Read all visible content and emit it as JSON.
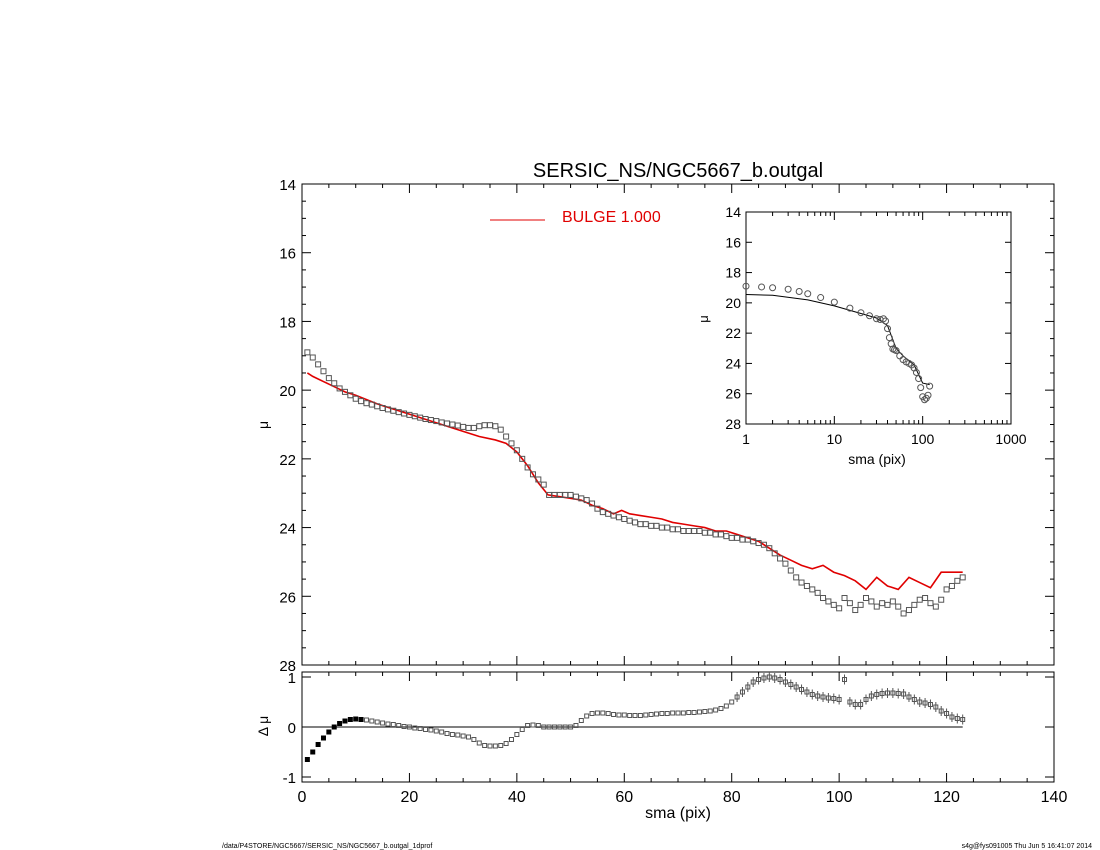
{
  "title": "SERSIC_NS/NGC5667_b.outgal",
  "footer": {
    "left": "/data/P4STORE/NGC5667/SERSIC_NS/NGC5667_b.outgal_1dprof",
    "right": "s4g@fys091005  Thu Jun  5 16:41:07 2014"
  },
  "colors": {
    "model": "#e00000",
    "points": "#555555",
    "axes": "#000000"
  },
  "chart_data": [
    {
      "id": "main",
      "type": "scatter",
      "ylabel": "μ",
      "xlim": [
        0,
        140
      ],
      "ylim": [
        28,
        14
      ],
      "yticks": [
        14,
        16,
        18,
        20,
        22,
        24,
        26,
        28
      ],
      "legend": {
        "position": "top-center",
        "label": "BULGE  1.000"
      },
      "series": [
        {
          "name": "BULGE  1.000",
          "kind": "line",
          "x": [
            1,
            2,
            4,
            6,
            8,
            10,
            14,
            18,
            22,
            26,
            30,
            33,
            36,
            38,
            40,
            42,
            44,
            45.3,
            45.8,
            48,
            50,
            52,
            54,
            56,
            58,
            59.5,
            61,
            63,
            65,
            67,
            69,
            71,
            73,
            75,
            77,
            79,
            81,
            83,
            85,
            87,
            89,
            91,
            93,
            95,
            97,
            99,
            101,
            103,
            105,
            107,
            109,
            111,
            113,
            115,
            117,
            119,
            121,
            123
          ],
          "y": [
            19.5,
            19.6,
            19.75,
            19.9,
            20.05,
            20.15,
            20.4,
            20.6,
            20.8,
            21.0,
            21.2,
            21.35,
            21.45,
            21.55,
            21.8,
            22.2,
            22.7,
            22.95,
            23.05,
            23.1,
            23.15,
            23.2,
            23.35,
            23.45,
            23.6,
            23.5,
            23.6,
            23.65,
            23.7,
            23.75,
            23.85,
            23.9,
            23.95,
            24.0,
            24.1,
            24.1,
            24.2,
            24.3,
            24.4,
            24.6,
            24.8,
            24.95,
            25.1,
            25.2,
            25.1,
            25.3,
            25.4,
            25.55,
            25.8,
            25.45,
            25.7,
            25.8,
            25.45,
            25.6,
            25.75,
            25.3,
            25.3,
            25.3
          ]
        },
        {
          "name": "",
          "kind": "points",
          "x": [
            1,
            2,
            3,
            4,
            5,
            6,
            7,
            8,
            9,
            10,
            11,
            12,
            13,
            14,
            15,
            16,
            17,
            18,
            19,
            20,
            21,
            22,
            23,
            24,
            25,
            26,
            27,
            28,
            29,
            30,
            31,
            32,
            33,
            34,
            35,
            36,
            37,
            38,
            39,
            40,
            41,
            42,
            43,
            44,
            45,
            46,
            47,
            48,
            49,
            50,
            51,
            52,
            53,
            54,
            55,
            56,
            57,
            58,
            59,
            60,
            61,
            62,
            63,
            64,
            65,
            66,
            67,
            68,
            69,
            70,
            71,
            72,
            73,
            74,
            75,
            76,
            77,
            78,
            79,
            80,
            81,
            82,
            83,
            84,
            85,
            86,
            87,
            88,
            89,
            90,
            91,
            92,
            93,
            94,
            95,
            96,
            97,
            98,
            99,
            100,
            101,
            102,
            103,
            104,
            105,
            106,
            107,
            108,
            109,
            110,
            111,
            112,
            113,
            114,
            115,
            116,
            117,
            118,
            119,
            120,
            121,
            122,
            123
          ],
          "y": [
            18.9,
            19.05,
            19.25,
            19.45,
            19.65,
            19.8,
            19.95,
            20.05,
            20.15,
            20.25,
            20.32,
            20.38,
            20.42,
            20.47,
            20.52,
            20.56,
            20.6,
            20.64,
            20.68,
            20.72,
            20.76,
            20.8,
            20.84,
            20.87,
            20.9,
            20.94,
            20.97,
            21.0,
            21.03,
            21.07,
            21.1,
            21.1,
            21.05,
            21.02,
            21.02,
            21.05,
            21.15,
            21.35,
            21.55,
            21.75,
            22.0,
            22.25,
            22.45,
            22.6,
            22.75,
            23.05,
            23.05,
            23.05,
            23.05,
            23.05,
            23.1,
            23.15,
            23.2,
            23.3,
            23.45,
            23.55,
            23.6,
            23.65,
            23.7,
            23.75,
            23.8,
            23.85,
            23.9,
            23.9,
            23.95,
            23.95,
            24.0,
            24.0,
            24.05,
            24.05,
            24.1,
            24.1,
            24.1,
            24.1,
            24.15,
            24.15,
            24.2,
            24.2,
            24.25,
            24.3,
            24.3,
            24.35,
            24.35,
            24.4,
            24.45,
            24.5,
            24.6,
            24.75,
            24.9,
            25.05,
            25.25,
            25.45,
            25.6,
            25.7,
            25.8,
            25.9,
            26.05,
            26.15,
            26.25,
            26.35,
            26.05,
            26.2,
            26.4,
            26.25,
            26.05,
            26.15,
            26.3,
            26.2,
            26.25,
            26.15,
            26.3,
            26.5,
            26.4,
            26.25,
            26.1,
            26.05,
            26.2,
            26.3,
            26.1,
            25.8,
            25.7,
            25.55,
            25.45
          ]
        }
      ]
    },
    {
      "id": "inset",
      "type": "line",
      "xlabel": "sma (pix)",
      "ylabel": "μ",
      "xscale": "log",
      "xlim": [
        1,
        1000
      ],
      "ylim": [
        28,
        14
      ],
      "xtick_labels": [
        "1",
        "10",
        "100",
        "1000"
      ],
      "yticks": [
        14,
        16,
        18,
        20,
        22,
        24,
        26,
        28
      ],
      "series": [
        {
          "name": "",
          "kind": "line",
          "x": [
            1,
            2,
            5,
            10,
            20,
            30,
            40,
            50,
            60,
            80,
            100,
            120
          ],
          "y": [
            19.45,
            19.5,
            19.8,
            20.2,
            20.7,
            21.0,
            21.5,
            23.0,
            23.5,
            24.1,
            25.3,
            25.4
          ]
        },
        {
          "name": "",
          "kind": "points",
          "x": [
            1,
            1.5,
            2,
            3,
            4,
            5,
            7,
            10,
            15,
            20,
            25,
            30,
            33,
            36,
            38,
            40,
            42,
            44,
            46,
            48,
            50,
            55,
            60,
            65,
            70,
            75,
            80,
            85,
            90,
            95,
            100,
            105,
            110,
            115,
            120
          ],
          "y": [
            18.9,
            18.95,
            19.0,
            19.1,
            19.25,
            19.4,
            19.65,
            19.95,
            20.35,
            20.65,
            20.85,
            21.05,
            21.1,
            21.05,
            21.2,
            21.7,
            22.3,
            22.7,
            23.05,
            23.1,
            23.15,
            23.5,
            23.75,
            23.9,
            24.0,
            24.1,
            24.3,
            24.6,
            25.0,
            25.6,
            26.2,
            26.4,
            26.3,
            26.1,
            25.5
          ]
        }
      ]
    },
    {
      "id": "residual",
      "type": "scatter",
      "xlabel": "sma (pix)",
      "ylabel": "Δ μ",
      "xlim": [
        0,
        140
      ],
      "ylim": [
        -1.1,
        1.1
      ],
      "xticks": [
        0,
        20,
        40,
        60,
        80,
        100,
        120,
        140
      ],
      "yticks": [
        -1,
        0,
        1
      ],
      "series": [
        {
          "name": "",
          "kind": "points",
          "x": [
            1,
            2,
            3,
            4,
            5,
            6,
            7,
            8,
            9,
            10,
            11,
            12,
            13,
            14,
            15,
            16,
            17,
            18,
            19,
            20,
            21,
            22,
            23,
            24,
            25,
            26,
            27,
            28,
            29,
            30,
            31,
            32,
            33,
            34,
            35,
            36,
            37,
            38,
            39,
            40,
            41,
            42,
            43,
            44,
            45,
            46,
            47,
            48,
            49,
            50,
            51,
            52,
            53,
            54,
            55,
            56,
            57,
            58,
            59,
            60,
            61,
            62,
            63,
            64,
            65,
            66,
            67,
            68,
            69,
            70,
            71,
            72,
            73,
            74,
            75,
            76,
            77,
            78,
            79,
            80,
            81,
            82,
            83,
            84,
            85,
            86,
            87,
            88,
            89,
            90,
            91,
            92,
            93,
            94,
            95,
            96,
            97,
            98,
            99,
            100,
            101,
            102,
            103,
            104,
            105,
            106,
            107,
            108,
            109,
            110,
            111,
            112,
            113,
            114,
            115,
            116,
            117,
            118,
            119,
            120,
            121,
            122,
            123
          ],
          "y": [
            -0.65,
            -0.5,
            -0.35,
            -0.22,
            -0.1,
            0.0,
            0.07,
            0.12,
            0.15,
            0.16,
            0.15,
            0.14,
            0.12,
            0.1,
            0.08,
            0.06,
            0.05,
            0.03,
            0.01,
            0.0,
            -0.02,
            -0.03,
            -0.05,
            -0.06,
            -0.08,
            -0.1,
            -0.13,
            -0.15,
            -0.16,
            -0.18,
            -0.2,
            -0.25,
            -0.32,
            -0.37,
            -0.38,
            -0.38,
            -0.37,
            -0.33,
            -0.25,
            -0.15,
            -0.05,
            0.03,
            0.04,
            0.03,
            0.0,
            0.0,
            0.0,
            0.0,
            0.0,
            0.0,
            0.03,
            0.13,
            0.22,
            0.27,
            0.28,
            0.28,
            0.27,
            0.25,
            0.24,
            0.24,
            0.23,
            0.23,
            0.23,
            0.24,
            0.25,
            0.26,
            0.27,
            0.27,
            0.28,
            0.28,
            0.28,
            0.29,
            0.29,
            0.3,
            0.31,
            0.32,
            0.34,
            0.37,
            0.42,
            0.5,
            0.6,
            0.7,
            0.8,
            0.9,
            0.95,
            0.98,
            1.0,
            0.98,
            0.95,
            0.9,
            0.85,
            0.8,
            0.75,
            0.7,
            0.65,
            0.62,
            0.6,
            0.58,
            0.57,
            0.55,
            0.95,
            0.5,
            0.45,
            0.45,
            0.55,
            0.62,
            0.65,
            0.67,
            0.68,
            0.68,
            0.67,
            0.66,
            0.6,
            0.55,
            0.5,
            0.48,
            0.45,
            0.4,
            0.32,
            0.27,
            0.2,
            0.17,
            0.15
          ]
        }
      ]
    }
  ]
}
